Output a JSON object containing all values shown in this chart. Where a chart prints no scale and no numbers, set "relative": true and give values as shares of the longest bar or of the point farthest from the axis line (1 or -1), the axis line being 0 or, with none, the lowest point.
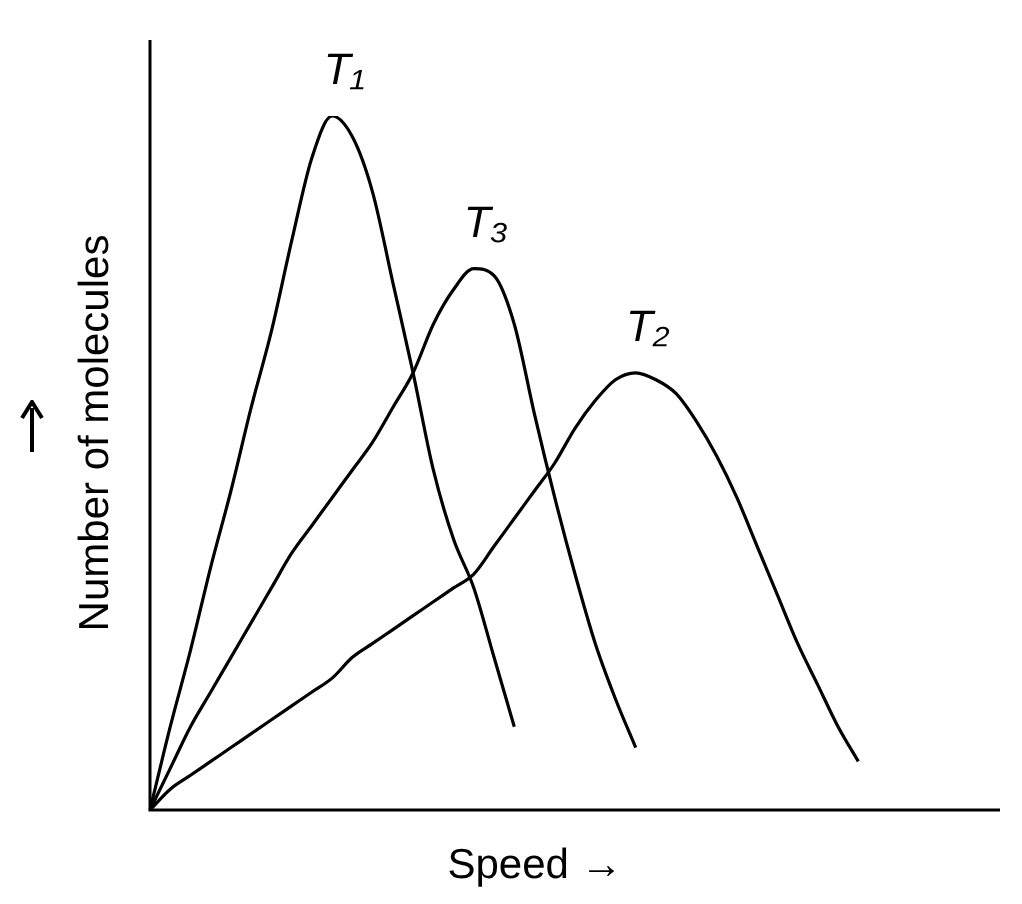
{
  "chart_data": {
    "type": "line",
    "relative": true,
    "xlabel": "Speed →",
    "ylabel": "Number of molecules",
    "legend": false,
    "marker": "none",
    "categories": [
      null,
      null,
      null,
      null,
      null,
      null,
      null,
      null,
      null,
      null,
      null,
      null,
      null,
      null,
      null,
      null,
      null,
      null,
      null,
      null,
      null,
      null,
      null,
      null,
      null,
      null,
      null,
      null,
      null,
      null,
      null,
      null,
      null,
      null,
      null,
      null,
      null,
      null,
      null,
      null,
      null,
      null,
      null
    ],
    "series": [
      {
        "name": "T₁",
        "color": "#000000",
        "values": [
          0,
          0.12,
          0.23,
          0.35,
          0.46,
          0.58,
          0.69,
          0.82,
          0.94,
          1,
          0.97,
          0.89,
          0.76,
          0.63,
          0.49,
          0.39,
          0.32,
          0.22,
          0.12,
          null,
          null,
          null,
          null,
          null,
          null,
          null,
          null,
          null,
          null,
          null,
          null,
          null,
          null,
          null,
          null,
          null,
          null,
          null,
          null,
          null,
          null,
          null,
          null
        ]
      },
      {
        "name": "T₃",
        "color": "#000000",
        "values": [
          0,
          0.06,
          0.12,
          0.17,
          0.22,
          0.27,
          0.32,
          0.37,
          0.41,
          0.45,
          0.49,
          0.53,
          0.58,
          0.63,
          0.7,
          0.75,
          0.78,
          0.77,
          0.7,
          0.57,
          0.45,
          0.34,
          0.24,
          0.16,
          0.09,
          null,
          null,
          null,
          null,
          null,
          null,
          null,
          null,
          null,
          null,
          null,
          null,
          null,
          null,
          null,
          null,
          null,
          null
        ]
      },
      {
        "name": "T₂",
        "color": "#000000",
        "values": [
          0,
          0.03,
          0.05,
          0.07,
          0.09,
          0.11,
          0.13,
          0.15,
          0.17,
          0.19,
          0.22,
          0.24,
          0.26,
          0.28,
          0.3,
          0.32,
          0.34,
          0.38,
          0.42,
          0.46,
          0.5,
          0.55,
          0.59,
          0.62,
          0.63,
          0.62,
          0.6,
          0.56,
          0.51,
          0.45,
          0.38,
          0.31,
          0.24,
          0.18,
          0.12,
          0.07,
          null,
          null,
          null,
          null,
          null,
          null,
          null
        ]
      }
    ]
  }
}
